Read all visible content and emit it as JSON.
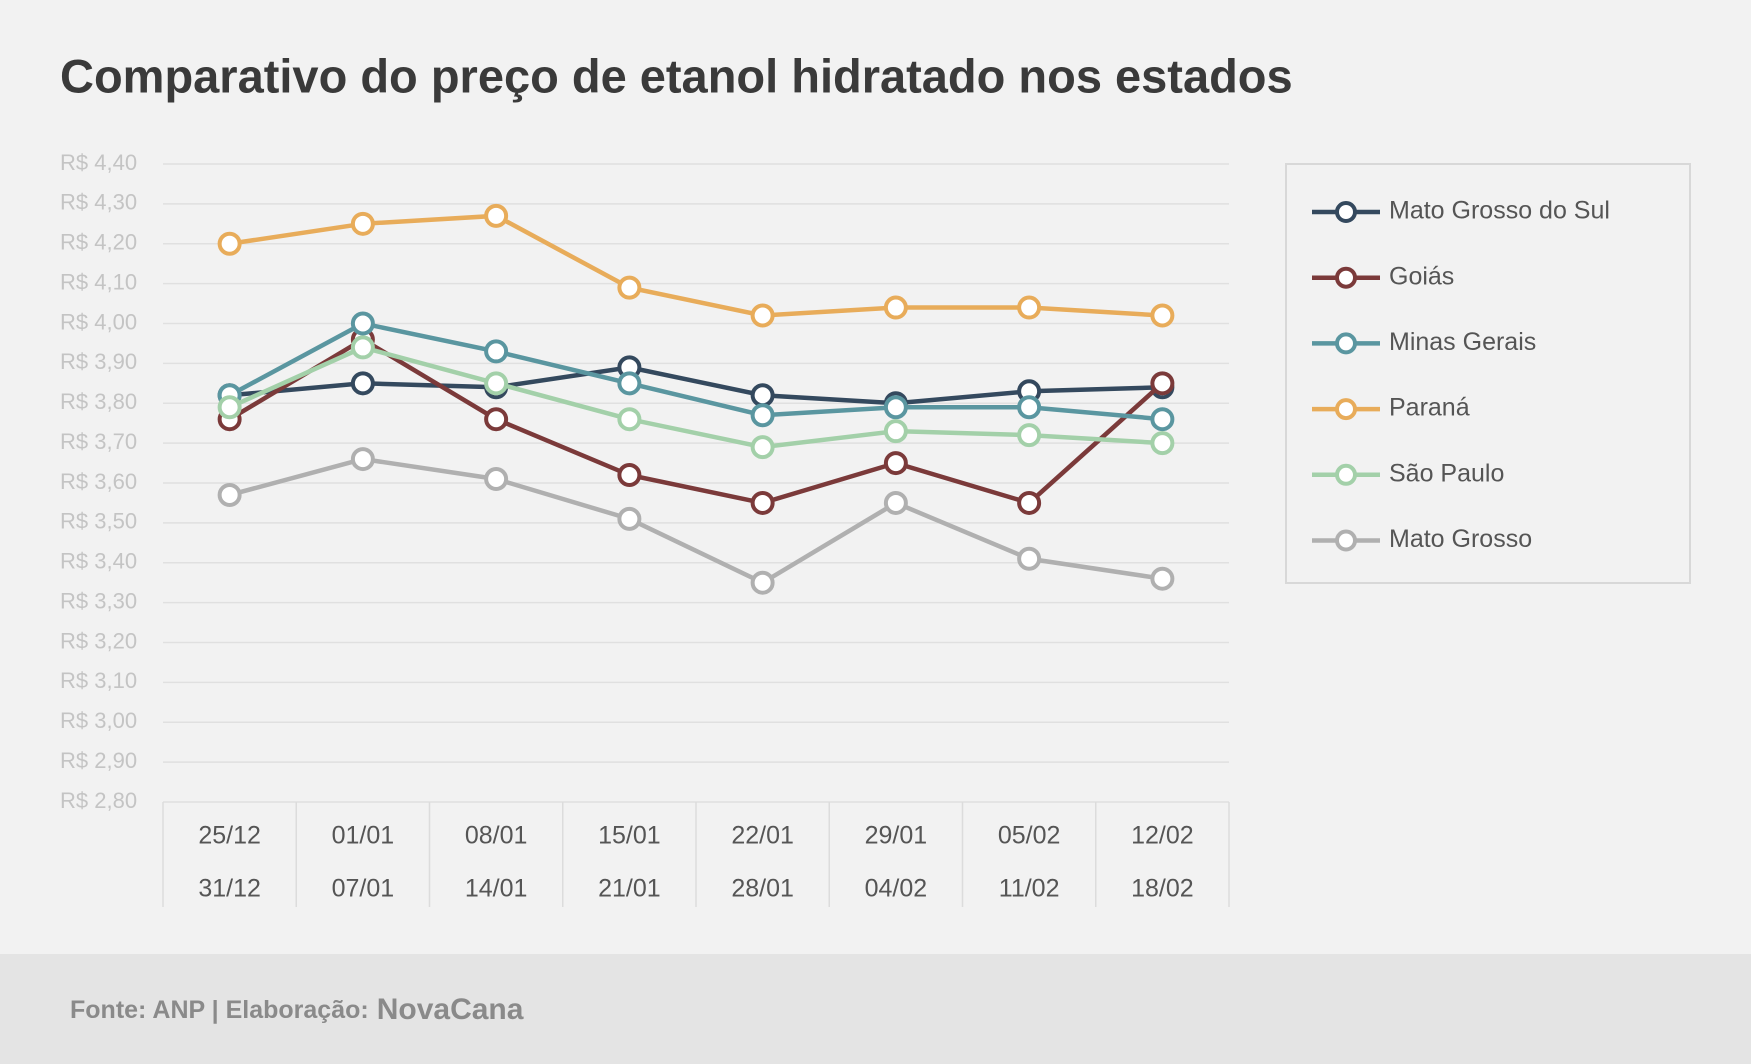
{
  "chart_data": {
    "type": "line",
    "title": "Comparativo do preço de etanol hidratado nos estados",
    "categories": [
      [
        "25/12",
        "31/12"
      ],
      [
        "01/01",
        "07/01"
      ],
      [
        "08/01",
        "14/01"
      ],
      [
        "15/01",
        "21/01"
      ],
      [
        "22/01",
        "28/01"
      ],
      [
        "29/01",
        "04/02"
      ],
      [
        "05/02",
        "11/02"
      ],
      [
        "12/02",
        "18/02"
      ]
    ],
    "series": [
      {
        "name": "Mato Grosso do Sul",
        "color": "#34495e",
        "values": [
          3.82,
          3.85,
          3.84,
          3.89,
          3.82,
          3.8,
          3.83,
          3.84
        ]
      },
      {
        "name": "Goiás",
        "color": "#7b3a3a",
        "values": [
          3.76,
          3.96,
          3.76,
          3.62,
          3.55,
          3.65,
          3.55,
          3.85
        ]
      },
      {
        "name": "Minas Gerais",
        "color": "#5a96a0",
        "values": [
          3.82,
          4.0,
          3.93,
          3.85,
          3.77,
          3.79,
          3.79,
          3.76
        ]
      },
      {
        "name": "Paraná",
        "color": "#e8ac5a",
        "values": [
          4.2,
          4.25,
          4.27,
          4.09,
          4.02,
          4.04,
          4.04,
          4.02
        ]
      },
      {
        "name": "São Paulo",
        "color": "#a3d0a9",
        "values": [
          3.79,
          3.94,
          3.85,
          3.76,
          3.69,
          3.73,
          3.72,
          3.7
        ]
      },
      {
        "name": "Mato Grosso",
        "color": "#b0b0b0",
        "values": [
          3.57,
          3.66,
          3.61,
          3.51,
          3.35,
          3.55,
          3.41,
          3.36
        ]
      }
    ],
    "ylim": [
      2.8,
      4.4
    ],
    "yticks": [
      {
        "value": 2.8,
        "label": "R$ 2,80"
      },
      {
        "value": 2.9,
        "label": "R$ 2,90"
      },
      {
        "value": 3.0,
        "label": "R$ 3,00"
      },
      {
        "value": 3.1,
        "label": "R$ 3,10"
      },
      {
        "value": 3.2,
        "label": "R$ 3,20"
      },
      {
        "value": 3.3,
        "label": "R$ 3,30"
      },
      {
        "value": 3.4,
        "label": "R$ 3,40"
      },
      {
        "value": 3.5,
        "label": "R$ 3,50"
      },
      {
        "value": 3.6,
        "label": "R$ 3,60"
      },
      {
        "value": 3.7,
        "label": "R$ 3,70"
      },
      {
        "value": 3.8,
        "label": "R$ 3,80"
      },
      {
        "value": 3.9,
        "label": "R$ 3,90"
      },
      {
        "value": 4.0,
        "label": "R$ 4,00"
      },
      {
        "value": 4.1,
        "label": "R$ 4,10"
      },
      {
        "value": 4.2,
        "label": "R$ 4,20"
      },
      {
        "value": 4.3,
        "label": "R$ 4,30"
      },
      {
        "value": 4.4,
        "label": "R$ 4,40"
      }
    ],
    "grid": true,
    "legend": "right",
    "source": "Fonte: ANP | Elaboração:",
    "brand": "NovaCana"
  }
}
